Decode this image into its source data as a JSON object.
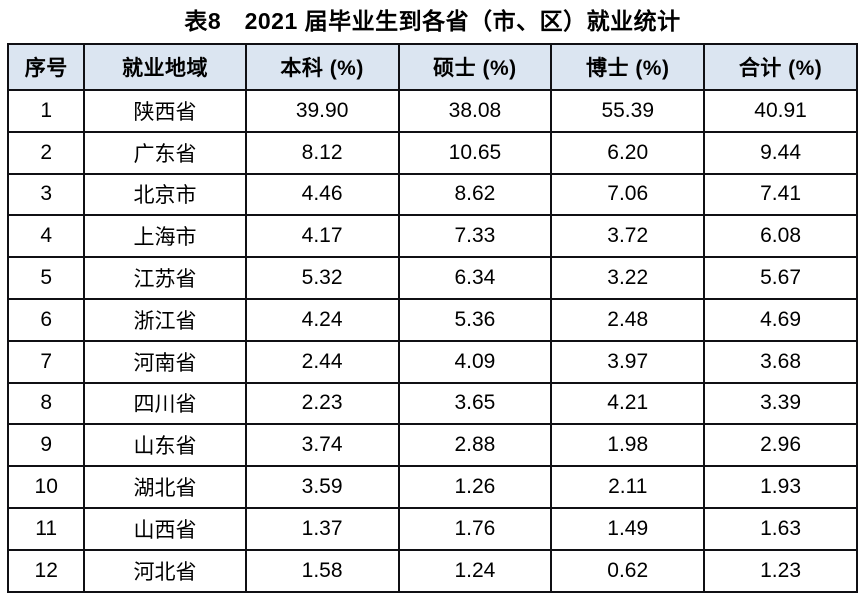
{
  "title": "表8　2021 届毕业生到各省（市、区）就业统计",
  "table": {
    "headers": [
      "序号",
      "就业地域",
      "本科 (%)",
      "硕士 (%)",
      "博士 (%)",
      "合计 (%)"
    ],
    "rows": [
      [
        "1",
        "陕西省",
        "39.90",
        "38.08",
        "55.39",
        "40.91"
      ],
      [
        "2",
        "广东省",
        "8.12",
        "10.65",
        "6.20",
        "9.44"
      ],
      [
        "3",
        "北京市",
        "4.46",
        "8.62",
        "7.06",
        "7.41"
      ],
      [
        "4",
        "上海市",
        "4.17",
        "7.33",
        "3.72",
        "6.08"
      ],
      [
        "5",
        "江苏省",
        "5.32",
        "6.34",
        "3.22",
        "5.67"
      ],
      [
        "6",
        "浙江省",
        "4.24",
        "5.36",
        "2.48",
        "4.69"
      ],
      [
        "7",
        "河南省",
        "2.44",
        "4.09",
        "3.97",
        "3.68"
      ],
      [
        "8",
        "四川省",
        "2.23",
        "3.65",
        "4.21",
        "3.39"
      ],
      [
        "9",
        "山东省",
        "3.74",
        "2.88",
        "1.98",
        "2.96"
      ],
      [
        "10",
        "湖北省",
        "3.59",
        "1.26",
        "2.11",
        "1.93"
      ],
      [
        "11",
        "山西省",
        "1.37",
        "1.76",
        "1.49",
        "1.63"
      ],
      [
        "12",
        "河北省",
        "1.58",
        "1.24",
        "0.62",
        "1.23"
      ]
    ]
  },
  "colors": {
    "header_background": "#dbe5f1",
    "border": "#101014",
    "text": "#000000",
    "page_background": "#ffffff"
  }
}
